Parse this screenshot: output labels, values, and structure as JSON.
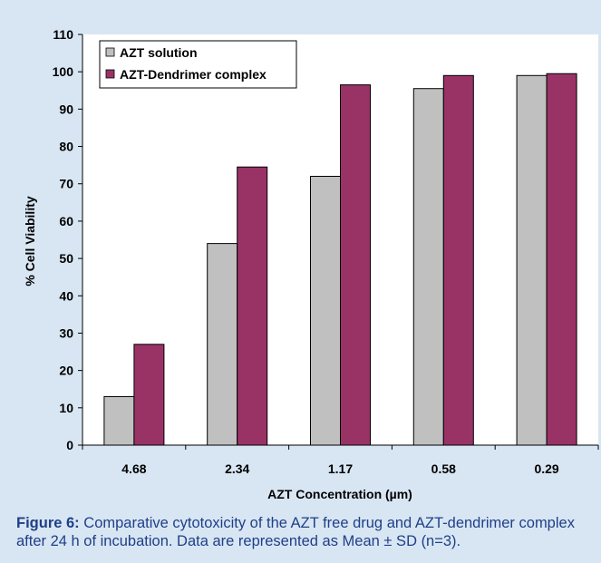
{
  "chart_data": {
    "type": "bar",
    "title": "",
    "xlabel": "AZT Concentration (µm)",
    "ylabel": "% Cell Viability",
    "ylim": [
      0,
      110
    ],
    "yticks": [
      0,
      10,
      20,
      30,
      40,
      50,
      60,
      70,
      80,
      90,
      100,
      110
    ],
    "categories": [
      "4.68",
      "2.34",
      "1.17",
      "0.58",
      "0.29"
    ],
    "series": [
      {
        "name": "AZT solution",
        "values": [
          13,
          54,
          72,
          95.5,
          99
        ],
        "color": "#c0c0c0"
      },
      {
        "name": "AZT-Dendrimer complex",
        "values": [
          27,
          74.5,
          96.5,
          99,
          99.5
        ],
        "color": "#993366"
      }
    ],
    "grid": false,
    "legend": "top-left",
    "plot_background": "#ffffff"
  },
  "caption": {
    "label": "Figure 6:",
    "text": " Comparative cytotoxicity of the AZT free drug and AZT-dendrimer complex after 24 h of incubation. Data are represented as Mean ± SD (n=3)."
  }
}
